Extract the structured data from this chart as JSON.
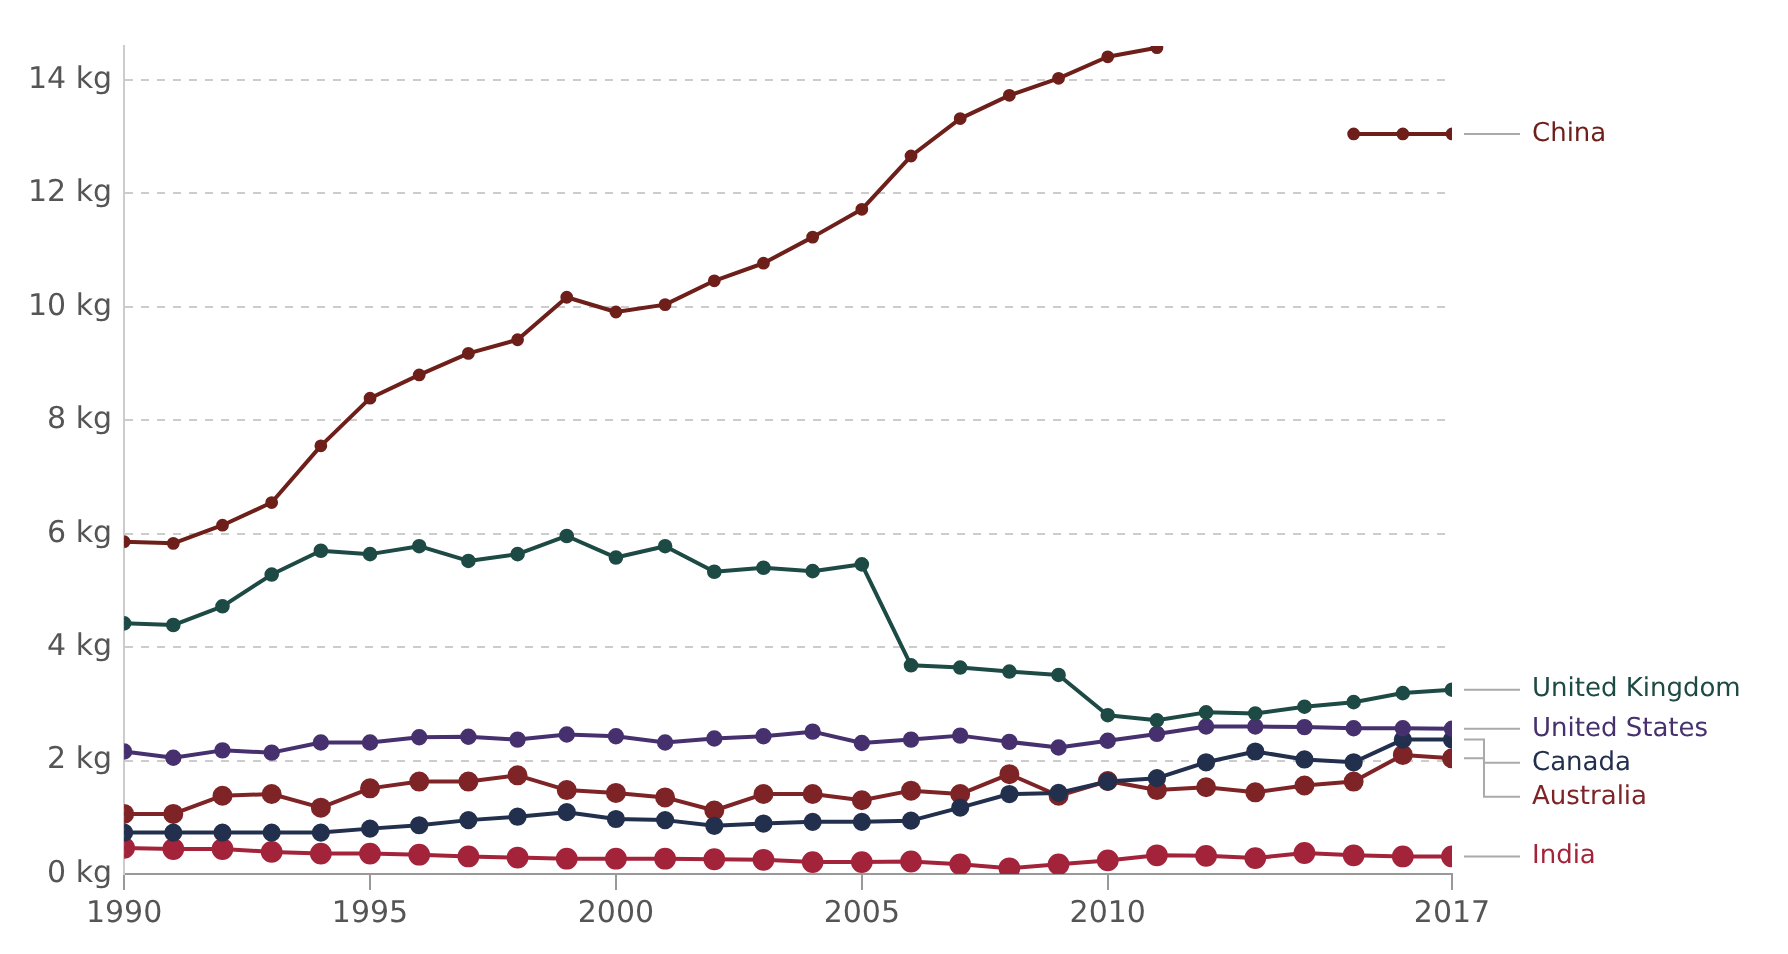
{
  "chart_data": {
    "type": "line",
    "x": [
      1990,
      1991,
      1992,
      1993,
      1994,
      1995,
      1996,
      1997,
      1998,
      1999,
      2000,
      2001,
      2002,
      2003,
      2004,
      2005,
      2006,
      2007,
      2008,
      2009,
      2010,
      2011,
      2012,
      2013,
      2014,
      2015,
      2016,
      2017
    ],
    "series": [
      {
        "name": "China",
        "color": "#6e1f1a",
        "values": [
          5.86,
          5.83,
          6.15,
          6.55,
          7.55,
          8.39,
          8.8,
          9.18,
          9.42,
          10.17,
          9.91,
          10.04,
          10.46,
          10.77,
          11.23,
          11.72,
          12.66,
          13.32,
          13.73,
          14.03,
          14.41,
          14.57,
          null,
          null,
          null,
          13.05,
          13.05,
          13.05
        ]
      },
      {
        "name": "United Kingdom",
        "color": "#1d4a45",
        "values": [
          4.42,
          4.39,
          4.72,
          5.28,
          5.7,
          5.64,
          5.78,
          5.52,
          5.64,
          5.96,
          5.58,
          5.78,
          5.33,
          5.4,
          5.34,
          5.46,
          3.68,
          3.64,
          3.57,
          3.51,
          2.8,
          2.71,
          2.85,
          2.83,
          2.95,
          3.03,
          3.19,
          3.25
        ]
      },
      {
        "name": "United States",
        "color": "#46306e",
        "values": [
          2.16,
          2.05,
          2.18,
          2.14,
          2.32,
          2.32,
          2.41,
          2.42,
          2.37,
          2.46,
          2.43,
          2.32,
          2.39,
          2.43,
          2.51,
          2.31,
          2.37,
          2.44,
          2.33,
          2.23,
          2.35,
          2.47,
          2.6,
          2.6,
          2.59,
          2.57,
          2.57,
          2.56
        ]
      },
      {
        "name": "Canada",
        "color": "#22304d",
        "values": [
          0.73,
          0.73,
          0.73,
          0.73,
          0.73,
          0.8,
          0.86,
          0.95,
          1.01,
          1.09,
          0.97,
          0.95,
          0.85,
          0.89,
          0.92,
          0.92,
          0.94,
          1.17,
          1.41,
          1.43,
          1.63,
          1.69,
          1.97,
          2.16,
          2.02,
          1.97,
          2.37,
          2.37
        ]
      },
      {
        "name": "Australia",
        "color": "#7e2426",
        "values": [
          1.06,
          1.06,
          1.38,
          1.41,
          1.17,
          1.51,
          1.63,
          1.63,
          1.74,
          1.48,
          1.43,
          1.35,
          1.12,
          1.41,
          1.41,
          1.3,
          1.47,
          1.41,
          1.76,
          1.38,
          1.64,
          1.48,
          1.53,
          1.44,
          1.56,
          1.63,
          2.1,
          2.04
        ]
      },
      {
        "name": "India",
        "color": "#a3243a",
        "values": [
          0.46,
          0.44,
          0.44,
          0.39,
          0.36,
          0.36,
          0.34,
          0.31,
          0.29,
          0.27,
          0.27,
          0.27,
          0.26,
          0.25,
          0.21,
          0.21,
          0.22,
          0.17,
          0.1,
          0.17,
          0.24,
          0.33,
          0.32,
          0.28,
          0.37,
          0.33,
          0.31,
          0.31
        ]
      }
    ],
    "xlim": [
      1990,
      2017
    ],
    "xticks": [
      1990,
      1995,
      2000,
      2005,
      2010,
      2017
    ],
    "ylim": [
      0,
      14.6
    ],
    "yticks": [
      {
        "value": 0,
        "label": "0 kg"
      },
      {
        "value": 2,
        "label": "2 kg"
      },
      {
        "value": 4,
        "label": "4 kg"
      },
      {
        "value": 6,
        "label": "6 kg"
      },
      {
        "value": 8,
        "label": "8 kg"
      },
      {
        "value": 10,
        "label": "10 kg"
      },
      {
        "value": 12,
        "label": "12 kg"
      },
      {
        "value": 14,
        "label": "14 kg"
      }
    ],
    "grid": "y",
    "legend": false,
    "marker": "circle",
    "line_style": "solid"
  }
}
